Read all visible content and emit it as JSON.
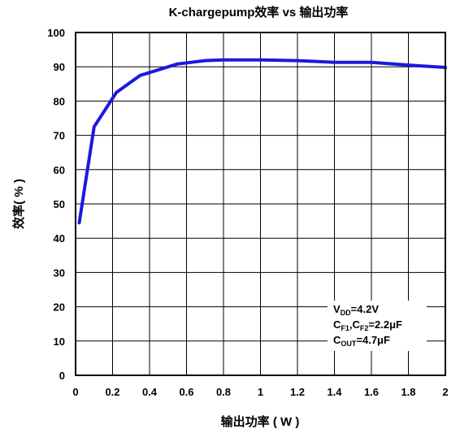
{
  "chart_data": {
    "type": "line",
    "title": "K-chargepump效率 vs 输出功率",
    "xlabel": "输出功率 ( W )",
    "ylabel": "效率( % )",
    "xlim": [
      0,
      2
    ],
    "ylim": [
      0,
      100
    ],
    "x_ticks": [
      "0",
      "0.2",
      "0.4",
      "0.6",
      "0.8",
      "1",
      "1.2",
      "1.4",
      "1.6",
      "1.8",
      "2"
    ],
    "y_ticks": [
      "0",
      "10",
      "20",
      "30",
      "40",
      "50",
      "60",
      "70",
      "80",
      "90",
      "100"
    ],
    "grid": true,
    "line_color": "#1a1adc",
    "series": [
      {
        "x": [
          0.02,
          0.1,
          0.22,
          0.35,
          0.55,
          0.7,
          0.8,
          1.0,
          1.2,
          1.4,
          1.6,
          1.8,
          2.0
        ],
        "y": [
          44.5,
          72.5,
          82.5,
          87.5,
          90.8,
          91.8,
          92.0,
          92.0,
          91.8,
          91.3,
          91.3,
          90.5,
          89.8
        ]
      }
    ],
    "annotation": {
      "lines": [
        {
          "main": "V",
          "sub": "DD",
          "rest": "=4.2V"
        },
        {
          "main": "C",
          "sub": "F1",
          "rest": ",C",
          "sub2": "F2",
          "rest2": "=2.2μF"
        },
        {
          "main": "C",
          "sub": "OUT",
          "rest": "=4.7μF"
        }
      ]
    }
  }
}
